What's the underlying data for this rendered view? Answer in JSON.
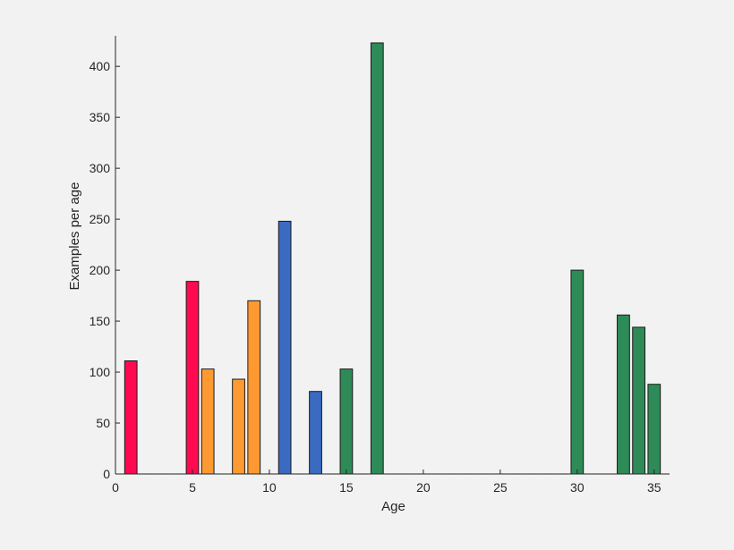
{
  "chart_data": {
    "type": "bar",
    "title": "",
    "xlabel": "Age",
    "ylabel": "Examples per age",
    "xlim": [
      0,
      36
    ],
    "ylim": [
      0,
      430
    ],
    "xticks": [
      0,
      5,
      10,
      15,
      20,
      25,
      30,
      35
    ],
    "yticks": [
      0,
      50,
      100,
      150,
      200,
      250,
      300,
      350,
      400
    ],
    "grid": false,
    "x": [
      1,
      2,
      3,
      4,
      5,
      6,
      7,
      8,
      9,
      10,
      11,
      12,
      13,
      14,
      15,
      16,
      17,
      18,
      19,
      20,
      21,
      22,
      23,
      24,
      25,
      26,
      27,
      28,
      29,
      30,
      31,
      32,
      33,
      34,
      35
    ],
    "values": [
      111,
      0,
      0,
      0,
      189,
      103,
      0,
      93,
      170,
      0,
      248,
      0,
      81,
      0,
      103,
      0,
      423,
      0,
      0,
      0,
      0,
      0,
      0,
      0,
      0,
      0,
      0,
      0,
      0,
      200,
      0,
      0,
      156,
      144,
      88
    ],
    "bar_colors": [
      "#ff0a50",
      "#ff0a50",
      "#ff0a50",
      "#ff0a50",
      "#ff0a50",
      "#ff9a32",
      "#ff9a32",
      "#ff9a32",
      "#ff9a32",
      "#3a6bc0",
      "#3a6bc0",
      "#3a6bc0",
      "#3a6bc0",
      "#2e8b57",
      "#2e8b57",
      "#2e8b57",
      "#2e8b57",
      "#2e8b57",
      "#2e8b57",
      "#2e8b57",
      "#2e8b57",
      "#2e8b57",
      "#2e8b57",
      "#2e8b57",
      "#2e8b57",
      "#2e8b57",
      "#2e8b57",
      "#2e8b57",
      "#2e8b57",
      "#2e8b57",
      "#2e8b57",
      "#2e8b57",
      "#2e8b57",
      "#2e8b57",
      "#2e8b57"
    ]
  },
  "colors": {
    "background": "#f2f2f2",
    "axis": "#262626",
    "bar_outline": "#1a1a1a"
  }
}
